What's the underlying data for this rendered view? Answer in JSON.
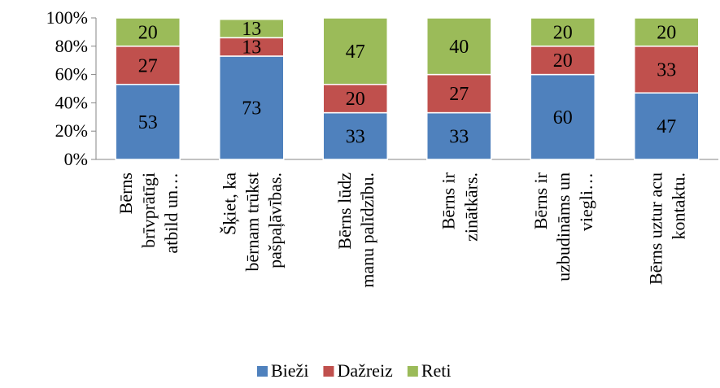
{
  "chart_data": {
    "type": "bar",
    "stacked": "percent",
    "orientation": "vertical",
    "categories": [
      [
        "Bērns",
        "brīvprātīgi",
        "atbild un…"
      ],
      [
        "Šķiet, ka",
        "bērnam trūkst",
        "pašpaļāvības."
      ],
      [
        "Bērns lūdz",
        "manu palīdzību."
      ],
      [
        "Bērns ir",
        "zinātkārs."
      ],
      [
        "Bērns ir",
        "uzbudināms un",
        "viegli…"
      ],
      [
        "Bērns uztur acu",
        "kontaktu."
      ]
    ],
    "series": [
      {
        "name": "Bieži",
        "color": "#4F81BD",
        "values": [
          53,
          73,
          33,
          33,
          60,
          47
        ]
      },
      {
        "name": "Dažreiz",
        "color": "#C0504D",
        "values": [
          27,
          13,
          20,
          27,
          20,
          33
        ]
      },
      {
        "name": "Reti",
        "color": "#9BBB59",
        "values": [
          20,
          13,
          47,
          40,
          20,
          20
        ]
      }
    ],
    "yticks": [
      "0%",
      "20%",
      "40%",
      "60%",
      "80%",
      "100%"
    ],
    "ylim": [
      0,
      100
    ],
    "grid": false,
    "data_labels": true,
    "legend_position": "bottom"
  }
}
